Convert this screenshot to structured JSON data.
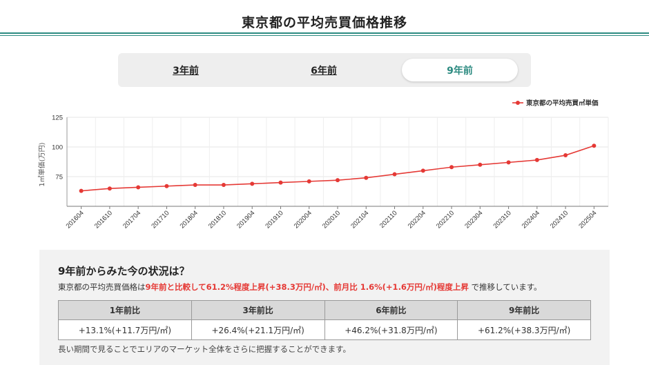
{
  "page": {
    "title": "東京都の平均売買価格推移"
  },
  "tabs": [
    {
      "label": "3年前",
      "active": false
    },
    {
      "label": "6年前",
      "active": false
    },
    {
      "label": "9年前",
      "active": true
    }
  ],
  "colors": {
    "accent": "#2b8a80",
    "series": "#e53935",
    "highlight": "#e53935"
  },
  "chart_data": {
    "type": "line",
    "x": [
      "201604",
      "201610",
      "201704",
      "201710",
      "201804",
      "201810",
      "201904",
      "201910",
      "202004",
      "202010",
      "202104",
      "202110",
      "202204",
      "202210",
      "202304",
      "202310",
      "202404",
      "202410",
      "202504"
    ],
    "series": [
      {
        "name": "東京都の平均売買㎡単価",
        "values": [
          63,
          65,
          66,
          67,
          68,
          68,
          69,
          70,
          71,
          72,
          74,
          77,
          80,
          83,
          85,
          87,
          89,
          93,
          101
        ]
      }
    ],
    "ylabel": "1㎡単価(万円)",
    "xlabel": "",
    "y_ticks": [
      75,
      100,
      125
    ],
    "ylim": [
      50,
      125
    ],
    "grid": true,
    "legend": "top-right"
  },
  "summary": {
    "heading": "9年前からみた今の状況は？",
    "prefix": "東京都の平均売買価格は",
    "highlight": "9年前と比較して61.2%程度上昇(+38.3万円/㎡)、前月比 1.6%(+1.6万円/㎡)程度上昇",
    "suffix": " で推移しています。",
    "table": {
      "headers": [
        "1年前比",
        "3年前比",
        "6年前比",
        "9年前比"
      ],
      "values": [
        "+13.1%(+11.7万円/㎡)",
        "+26.4%(+21.1万円/㎡)",
        "+46.2%(+31.8万円/㎡)",
        "+61.2%(+38.3万円/㎡)"
      ]
    },
    "note": "長い期間で見ることでエリアのマーケット全体をさらに把握することができます。"
  }
}
